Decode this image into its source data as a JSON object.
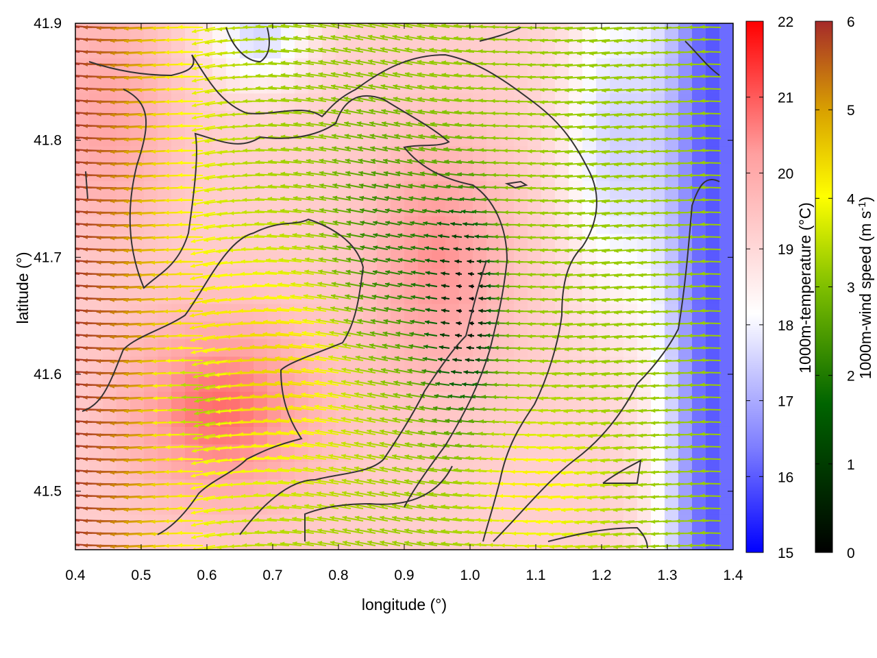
{
  "chart_data": {
    "type": "heatmap",
    "title": "",
    "xlabel": "longitude (°)",
    "ylabel": "latitude (°)",
    "xlim": [
      0.4,
      1.4
    ],
    "ylim": [
      41.45,
      41.9
    ],
    "xticks": [
      "0.4",
      "0.5",
      "0.6",
      "0.7",
      "0.8",
      "0.9",
      "1.0",
      "1.1",
      "1.2",
      "1.3",
      "1.4"
    ],
    "yticks": [
      "41.5",
      "41.6",
      "41.7",
      "41.8",
      "41.9"
    ],
    "grid": false,
    "fields": {
      "background": "1000m-temperature (°C), colour shading",
      "arrows": "1000m-wind vectors coloured by speed (m s-1)",
      "contours": "dark grey contour lines"
    },
    "temperature_colorbar": {
      "label": "1000m-temperature (°C)",
      "range": [
        15,
        22
      ],
      "ticks": [
        "15",
        "16",
        "17",
        "18",
        "19",
        "20",
        "21",
        "22"
      ],
      "colors": [
        "#0000ff",
        "#ffffff",
        "#ff0000"
      ]
    },
    "wind_colorbar": {
      "label_main": "1000m-wind speed (m s",
      "label_sup": "-1",
      "label_end": ")",
      "range": [
        0,
        6
      ],
      "ticks": [
        "0",
        "1",
        "2",
        "3",
        "4",
        "5",
        "6"
      ],
      "colors": [
        "#000000",
        "#006400",
        "#7fbf00",
        "#ffff00",
        "#d9a200",
        "#a52a2a"
      ]
    },
    "wind_summary": {
      "west_region_speed": 6,
      "central_calm_speed": 0.3,
      "east_region_speed": 3,
      "dominant_direction": "from east"
    }
  }
}
